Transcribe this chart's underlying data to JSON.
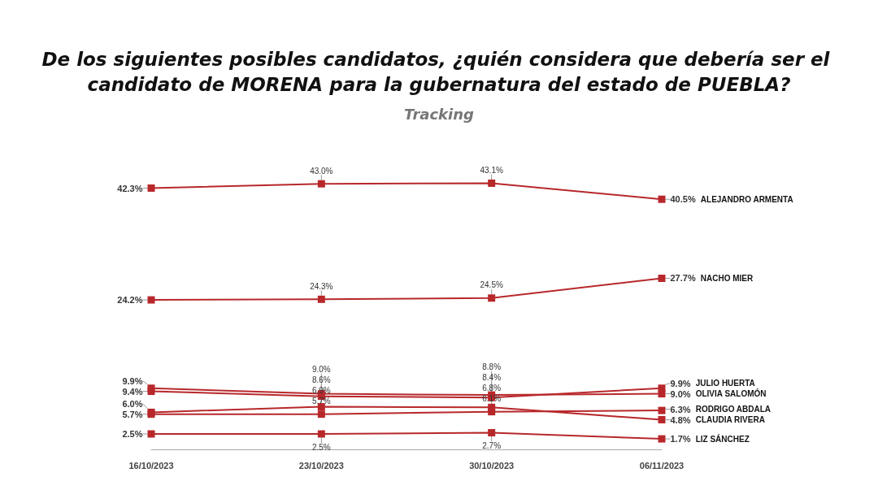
{
  "chart_data": {
    "type": "line",
    "title": "De los siguientes posibles candidatos, ¿quién considera que debería ser el candidato de MORENA para la gubernatura del estado de PUEBLA?",
    "subtitle": "Tracking",
    "categories": [
      "16/10/2023",
      "23/10/2023",
      "30/10/2023",
      "06/11/2023"
    ],
    "marker": "square",
    "line_style": "solid",
    "grid": false,
    "legend": false,
    "tick_labels": "x",
    "series": [
      {
        "name": "ALEJANDRO ARMENTA",
        "color": "#b8282b",
        "values": [
          42.3,
          43.0,
          43.1,
          40.5
        ],
        "value_labels": [
          "42.3%",
          "43.0%",
          "43.1%",
          "40.5%"
        ]
      },
      {
        "name": "NACHO MIER",
        "color": "#b8282b",
        "values": [
          24.2,
          24.3,
          24.5,
          27.7
        ],
        "value_labels": [
          "24.2%",
          "24.3%",
          "24.5%",
          "27.7%"
        ]
      },
      {
        "name": "JULIO HUERTA",
        "color": "#b8282b",
        "values": [
          9.4,
          8.6,
          8.4,
          9.9
        ],
        "value_labels": [
          "9.4%",
          "8.6%",
          "8.4%",
          "9.9%"
        ]
      },
      {
        "name": "OLIVIA SALOMÓN",
        "color": "#b8282b",
        "values": [
          9.9,
          9.0,
          8.8,
          9.0
        ],
        "value_labels": [
          "9.9%",
          "9.0%",
          "8.8%",
          "9.0%"
        ]
      },
      {
        "name": "RODRIGO ABDALA",
        "color": "#b8282b",
        "values": [
          5.7,
          5.7,
          6.1,
          6.3
        ],
        "value_labels": [
          "5.7%",
          "5.7%",
          "6.1%",
          "6.3%"
        ]
      },
      {
        "name": "CLAUDIA RIVERA",
        "color": "#b8282b",
        "values": [
          6.0,
          6.9,
          6.8,
          4.8
        ],
        "value_labels": [
          "6.0%",
          "6.9%",
          "6.8%",
          "4.8%"
        ]
      },
      {
        "name": "LIZ SÁNCHEZ",
        "color": "#b8282b",
        "values": [
          2.5,
          2.5,
          2.7,
          1.7
        ],
        "value_labels": [
          "2.5%",
          "2.5%",
          "2.7%",
          "1.7%"
        ]
      }
    ]
  }
}
